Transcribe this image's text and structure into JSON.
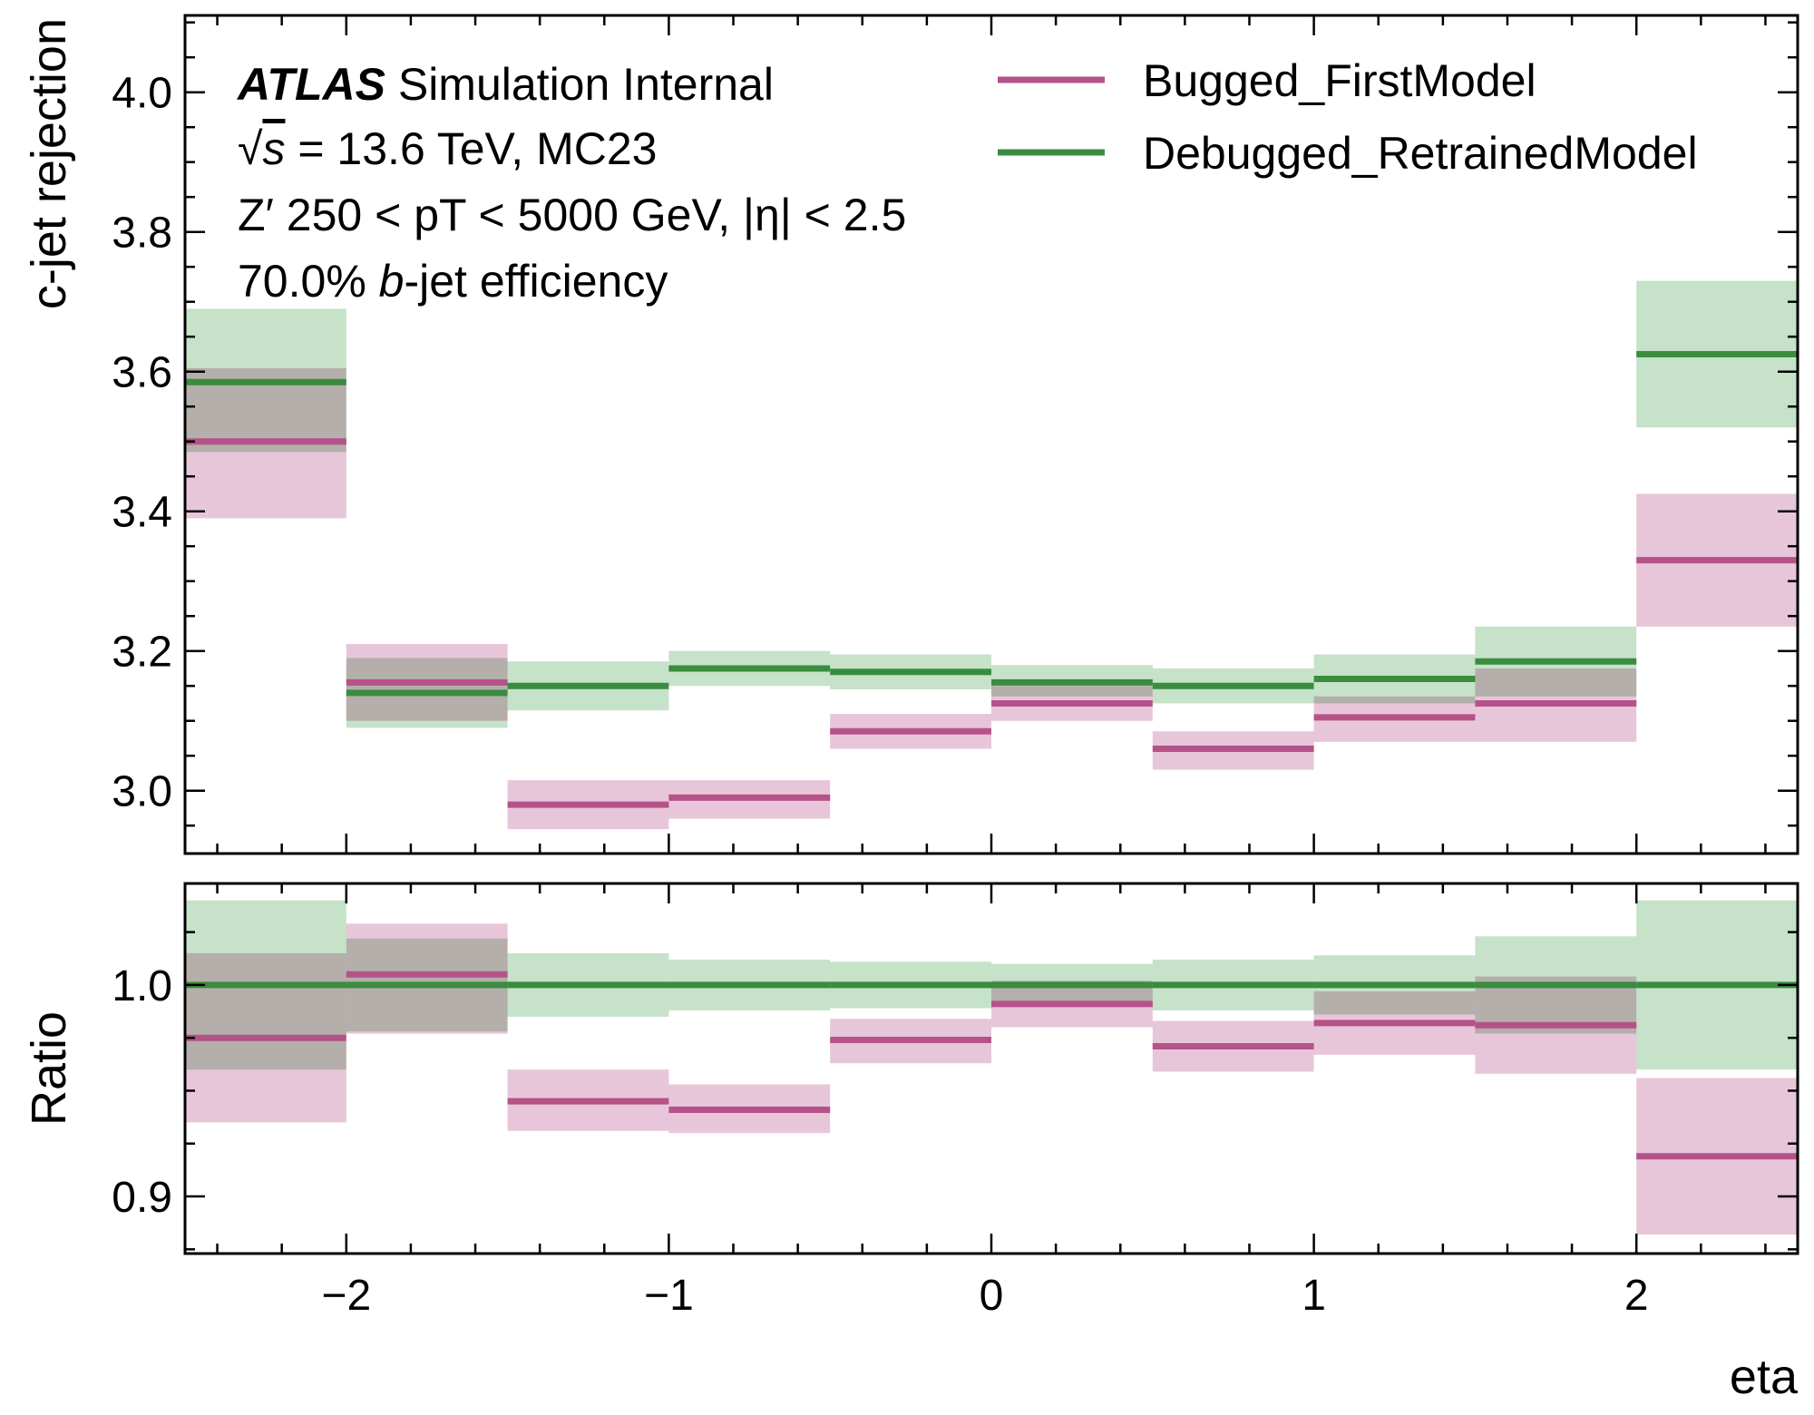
{
  "header": {
    "atlas": "ATLAS",
    "atlas_suffix": " Simulation Internal",
    "energy_rest": " = 13.6 TeV, MC23",
    "sample": "Z′ 250 < pT < 5000 GeV, |η| < 2.5",
    "wp_prefix": "70.0% ",
    "wp_b": "b",
    "wp_suffix": "-jet efficiency"
  },
  "chart_data": {
    "type": "step",
    "xlabel": "eta",
    "ylabel_top": "c-jet rejection",
    "ylabel_bottom": "Ratio",
    "x_bin_edges": [
      -2.5,
      -2.0,
      -1.5,
      -1.0,
      -0.5,
      0.0,
      0.5,
      1.0,
      1.5,
      2.0,
      2.5
    ],
    "xlim": [
      -2.5,
      2.5
    ],
    "x_ticks": [
      -2,
      -1,
      0,
      1,
      2
    ],
    "x_tick_labels": [
      "−2",
      "−1",
      "0",
      "1",
      "2"
    ],
    "top_panel": {
      "ylim": [
        2.91,
        4.11
      ],
      "y_ticks": [
        3.0,
        3.2,
        3.4,
        3.6,
        3.8,
        4.0
      ],
      "y_tick_labels": [
        "3.0",
        "3.2",
        "3.4",
        "3.6",
        "3.8",
        "4.0"
      ],
      "series": [
        {
          "name": "Bugged_FirstModel",
          "color": "#b5528a",
          "band_color": "#e4bcd2",
          "values": [
            3.5,
            3.155,
            2.98,
            2.99,
            3.085,
            3.125,
            3.06,
            3.105,
            3.125,
            3.33
          ],
          "err_low": [
            3.39,
            3.1,
            2.945,
            2.96,
            3.06,
            3.1,
            3.03,
            3.07,
            3.07,
            3.235
          ],
          "err_high": [
            3.605,
            3.21,
            3.015,
            3.015,
            3.11,
            3.15,
            3.085,
            3.135,
            3.175,
            3.425
          ]
        },
        {
          "name": "Debugged_RetrainedModel",
          "color": "#3a8c3f",
          "band_color": "#bcddc0",
          "values": [
            3.585,
            3.14,
            3.15,
            3.175,
            3.17,
            3.155,
            3.15,
            3.16,
            3.185,
            3.625
          ],
          "err_low": [
            3.485,
            3.09,
            3.115,
            3.15,
            3.145,
            3.135,
            3.125,
            3.125,
            3.135,
            3.52
          ],
          "err_high": [
            3.69,
            3.19,
            3.185,
            3.2,
            3.195,
            3.18,
            3.175,
            3.195,
            3.235,
            3.73
          ]
        }
      ]
    },
    "bottom_panel": {
      "ylim": [
        0.873,
        1.048
      ],
      "y_ticks": [
        0.9,
        1.0
      ],
      "y_tick_labels": [
        "0.9",
        "1.0"
      ],
      "series": [
        {
          "name": "Bugged_FirstModel",
          "color": "#b5528a",
          "band_color": "#e4bcd2",
          "values": [
            0.975,
            1.005,
            0.945,
            0.941,
            0.974,
            0.991,
            0.971,
            0.982,
            0.981,
            0.919
          ],
          "err_low": [
            0.935,
            0.977,
            0.931,
            0.93,
            0.963,
            0.98,
            0.959,
            0.967,
            0.958,
            0.882
          ],
          "err_high": [
            1.015,
            1.029,
            0.96,
            0.953,
            0.984,
            1.002,
            0.983,
            0.997,
            1.004,
            0.956
          ]
        },
        {
          "name": "Debugged_RetrainedModel",
          "color": "#3a8c3f",
          "band_color": "#bcddc0",
          "values": [
            1.0,
            1.0,
            1.0,
            1.0,
            1.0,
            1.0,
            1.0,
            1.0,
            1.0,
            1.0
          ],
          "err_low": [
            0.96,
            0.978,
            0.985,
            0.988,
            0.989,
            0.99,
            0.988,
            0.986,
            0.977,
            0.96
          ],
          "err_high": [
            1.04,
            1.022,
            1.015,
            1.012,
            1.011,
            1.01,
            1.012,
            1.014,
            1.023,
            1.04
          ]
        }
      ]
    },
    "legend_position": "top-right"
  }
}
